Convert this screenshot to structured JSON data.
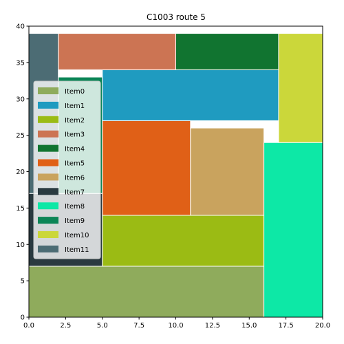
{
  "chart_data": {
    "type": "treemap",
    "title": "C1003 route 5",
    "xlim": [
      0,
      20
    ],
    "ylim": [
      0,
      40
    ],
    "x_ticks": [
      "0.0",
      "2.5",
      "5.0",
      "7.5",
      "10.0",
      "12.5",
      "15.0",
      "17.5",
      "20.0"
    ],
    "y_ticks": [
      "0",
      "5",
      "10",
      "15",
      "20",
      "25",
      "30",
      "35",
      "40"
    ],
    "legend_position": "left",
    "items": [
      {
        "name": "Item0",
        "color": "#8fab5c",
        "x0": 0,
        "y0": 0,
        "x1": 16,
        "y1": 7
      },
      {
        "name": "Item1",
        "color": "#1f9bc0",
        "x0": 5,
        "y0": 27,
        "x1": 17,
        "y1": 34
      },
      {
        "name": "Item2",
        "color": "#9bbb14",
        "x0": 5,
        "y0": 7,
        "x1": 16,
        "y1": 14
      },
      {
        "name": "Item3",
        "color": "#cc7453",
        "x0": 2,
        "y0": 34,
        "x1": 10,
        "y1": 39
      },
      {
        "name": "Item4",
        "color": "#117430",
        "x0": 10,
        "y0": 34,
        "x1": 17,
        "y1": 39
      },
      {
        "name": "Item5",
        "color": "#e06017",
        "x0": 5,
        "y0": 14,
        "x1": 11,
        "y1": 27
      },
      {
        "name": "Item6",
        "color": "#c9a35e",
        "x0": 11,
        "y0": 14,
        "x1": 16,
        "y1": 26
      },
      {
        "name": "Item7",
        "color": "#2a3a40",
        "x0": 0,
        "y0": 7,
        "x1": 5,
        "y1": 17
      },
      {
        "name": "Item8",
        "color": "#0de8a6",
        "x0": 16,
        "y0": 0,
        "x1": 20,
        "y1": 24
      },
      {
        "name": "Item9",
        "color": "#0b8556",
        "x0": 2,
        "y0": 17,
        "x1": 5,
        "y1": 33
      },
      {
        "name": "Item10",
        "color": "#cbd73a",
        "x0": 17,
        "y0": 24,
        "x1": 20,
        "y1": 39
      },
      {
        "name": "Item11",
        "color": "#4c6c74",
        "x0": 0,
        "y0": 17,
        "x1": 2,
        "y1": 39
      }
    ]
  }
}
